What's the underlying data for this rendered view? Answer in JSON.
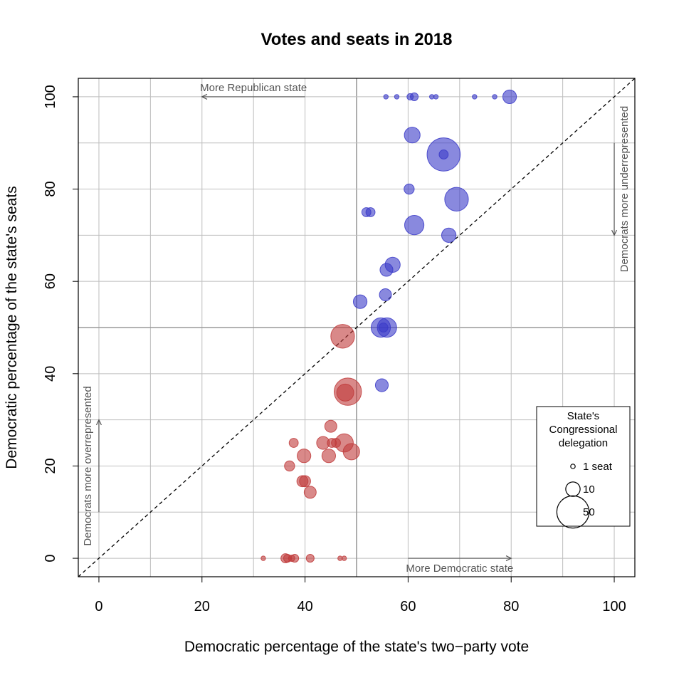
{
  "chart_data": {
    "type": "scatter",
    "title": "Votes and seats in 2018",
    "xlabel": "Democratic percentage of the state's two−party vote",
    "ylabel": "Democratic percentage of the state's seats",
    "xlim": [
      -4,
      104
    ],
    "ylim": [
      -4,
      104
    ],
    "x_ticks": [
      0,
      20,
      40,
      60,
      80,
      100
    ],
    "y_ticks": [
      0,
      20,
      40,
      60,
      80,
      100
    ],
    "grid": true,
    "diagonal_line": "dashed y = x",
    "colors": {
      "democratic": "#3b3bc8",
      "republican": "#bf3b3b",
      "grid": "#bebebe",
      "annotation": "#555555"
    },
    "annotations": {
      "more_republican": "More Republican state",
      "more_democratic": "More Democratic state",
      "dem_underrepresented": "Democrats more underrepresented",
      "dem_overrepresented": "Democrats more overrepresented"
    },
    "legend": {
      "title_lines": [
        "State's",
        "Congressional",
        "delegation"
      ],
      "entries": [
        {
          "label": "1 seat",
          "seats": 1
        },
        {
          "label": "10",
          "seats": 10
        },
        {
          "label": "50",
          "seats": 50
        }
      ],
      "position": "bottom-right"
    },
    "points": [
      {
        "x": 55.7,
        "y": 100,
        "seats": 1,
        "party": "D"
      },
      {
        "x": 57.8,
        "y": 100,
        "seats": 1,
        "party": "D"
      },
      {
        "x": 60.4,
        "y": 100,
        "seats": 2,
        "party": "D"
      },
      {
        "x": 61.2,
        "y": 100,
        "seats": 3,
        "party": "D"
      },
      {
        "x": 64.6,
        "y": 100,
        "seats": 1,
        "party": "D"
      },
      {
        "x": 65.4,
        "y": 100,
        "seats": 1,
        "party": "D"
      },
      {
        "x": 72.9,
        "y": 100,
        "seats": 1,
        "party": "D"
      },
      {
        "x": 76.8,
        "y": 100,
        "seats": 1,
        "party": "D"
      },
      {
        "x": 79.7,
        "y": 100,
        "seats": 9,
        "party": "D"
      },
      {
        "x": 60.8,
        "y": 91.7,
        "seats": 12,
        "party": "D"
      },
      {
        "x": 66.9,
        "y": 87.5,
        "seats": 53,
        "party": "D"
      },
      {
        "x": 66.9,
        "y": 87.5,
        "seats": 4,
        "party": "D"
      },
      {
        "x": 60.2,
        "y": 80,
        "seats": 5,
        "party": "D"
      },
      {
        "x": 69.4,
        "y": 77.8,
        "seats": 27,
        "party": "D"
      },
      {
        "x": 51.9,
        "y": 75,
        "seats": 4,
        "party": "D"
      },
      {
        "x": 52.7,
        "y": 75,
        "seats": 4,
        "party": "D"
      },
      {
        "x": 61.2,
        "y": 72.2,
        "seats": 18,
        "party": "D"
      },
      {
        "x": 67.9,
        "y": 70,
        "seats": 10,
        "party": "D"
      },
      {
        "x": 57.0,
        "y": 63.6,
        "seats": 11,
        "party": "D"
      },
      {
        "x": 55.8,
        "y": 62.5,
        "seats": 8,
        "party": "D"
      },
      {
        "x": 55.6,
        "y": 57.1,
        "seats": 7,
        "party": "D"
      },
      {
        "x": 50.7,
        "y": 55.6,
        "seats": 9,
        "party": "D"
      },
      {
        "x": 54.7,
        "y": 50,
        "seats": 18,
        "party": "D"
      },
      {
        "x": 55.9,
        "y": 50,
        "seats": 18,
        "party": "D"
      },
      {
        "x": 55.2,
        "y": 50,
        "seats": 4,
        "party": "D"
      },
      {
        "x": 54.9,
        "y": 37.5,
        "seats": 8,
        "party": "D"
      },
      {
        "x": 47.3,
        "y": 48.1,
        "seats": 27,
        "party": "R"
      },
      {
        "x": 48.3,
        "y": 36.1,
        "seats": 36,
        "party": "R"
      },
      {
        "x": 47.8,
        "y": 35.9,
        "seats": 14,
        "party": "R"
      },
      {
        "x": 45.0,
        "y": 28.6,
        "seats": 7,
        "party": "R"
      },
      {
        "x": 37.8,
        "y": 25,
        "seats": 4,
        "party": "R"
      },
      {
        "x": 43.5,
        "y": 25,
        "seats": 8,
        "party": "R"
      },
      {
        "x": 45.2,
        "y": 25,
        "seats": 4,
        "party": "R"
      },
      {
        "x": 46.0,
        "y": 25,
        "seats": 4,
        "party": "R"
      },
      {
        "x": 47.6,
        "y": 25,
        "seats": 16,
        "party": "R"
      },
      {
        "x": 39.8,
        "y": 22.2,
        "seats": 9,
        "party": "R"
      },
      {
        "x": 44.6,
        "y": 22.2,
        "seats": 9,
        "party": "R"
      },
      {
        "x": 49.0,
        "y": 23.1,
        "seats": 13,
        "party": "R"
      },
      {
        "x": 37.0,
        "y": 20,
        "seats": 5,
        "party": "R"
      },
      {
        "x": 39.5,
        "y": 16.7,
        "seats": 6,
        "party": "R"
      },
      {
        "x": 40.0,
        "y": 16.7,
        "seats": 6,
        "party": "R"
      },
      {
        "x": 41.0,
        "y": 14.3,
        "seats": 7,
        "party": "R"
      },
      {
        "x": 31.9,
        "y": 0,
        "seats": 1,
        "party": "R"
      },
      {
        "x": 36.2,
        "y": 0,
        "seats": 4,
        "party": "R"
      },
      {
        "x": 36.6,
        "y": 0,
        "seats": 3,
        "party": "R"
      },
      {
        "x": 37.4,
        "y": 0,
        "seats": 2,
        "party": "R"
      },
      {
        "x": 38.0,
        "y": 0,
        "seats": 3,
        "party": "R"
      },
      {
        "x": 41.0,
        "y": 0,
        "seats": 3,
        "party": "R"
      },
      {
        "x": 46.8,
        "y": 0,
        "seats": 1,
        "party": "R"
      },
      {
        "x": 47.6,
        "y": 0,
        "seats": 1,
        "party": "R"
      }
    ]
  }
}
